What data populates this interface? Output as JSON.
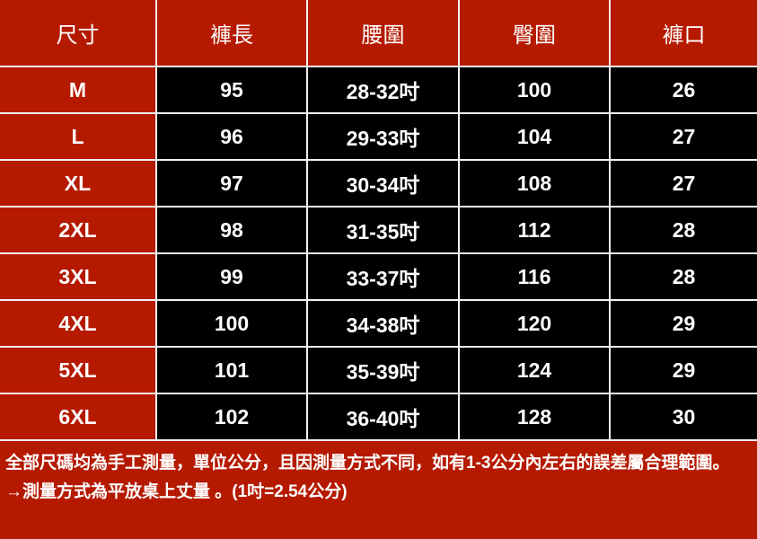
{
  "headers": [
    "尺寸",
    "褲長",
    "腰圍",
    "臀圍",
    "褲口"
  ],
  "rows": [
    [
      "M",
      "95",
      "28-32吋",
      "100",
      "26"
    ],
    [
      "L",
      "96",
      "29-33吋",
      "104",
      "27"
    ],
    [
      "XL",
      "97",
      "30-34吋",
      "108",
      "27"
    ],
    [
      "2XL",
      "98",
      "31-35吋",
      "112",
      "28"
    ],
    [
      "3XL",
      "99",
      "33-37吋",
      "116",
      "28"
    ],
    [
      "4XL",
      "100",
      "34-38吋",
      "120",
      "29"
    ],
    [
      "5XL",
      "101",
      "35-39吋",
      "124",
      "29"
    ],
    [
      "6XL",
      "102",
      "36-40吋",
      "128",
      "30"
    ]
  ],
  "notes": {
    "line1": "全部尺碼均為手工測量，單位公分，且因測量方式不同，如有1-3公分內左右的誤差屬合理範圍。",
    "line2": "→測量方式為平放桌上丈量 。(1吋=2.54公分)"
  },
  "colors": {
    "header_bg": "#b51a00",
    "value_bg": "#000000",
    "grid": "#f2f2f2",
    "text": "#ffffff"
  }
}
